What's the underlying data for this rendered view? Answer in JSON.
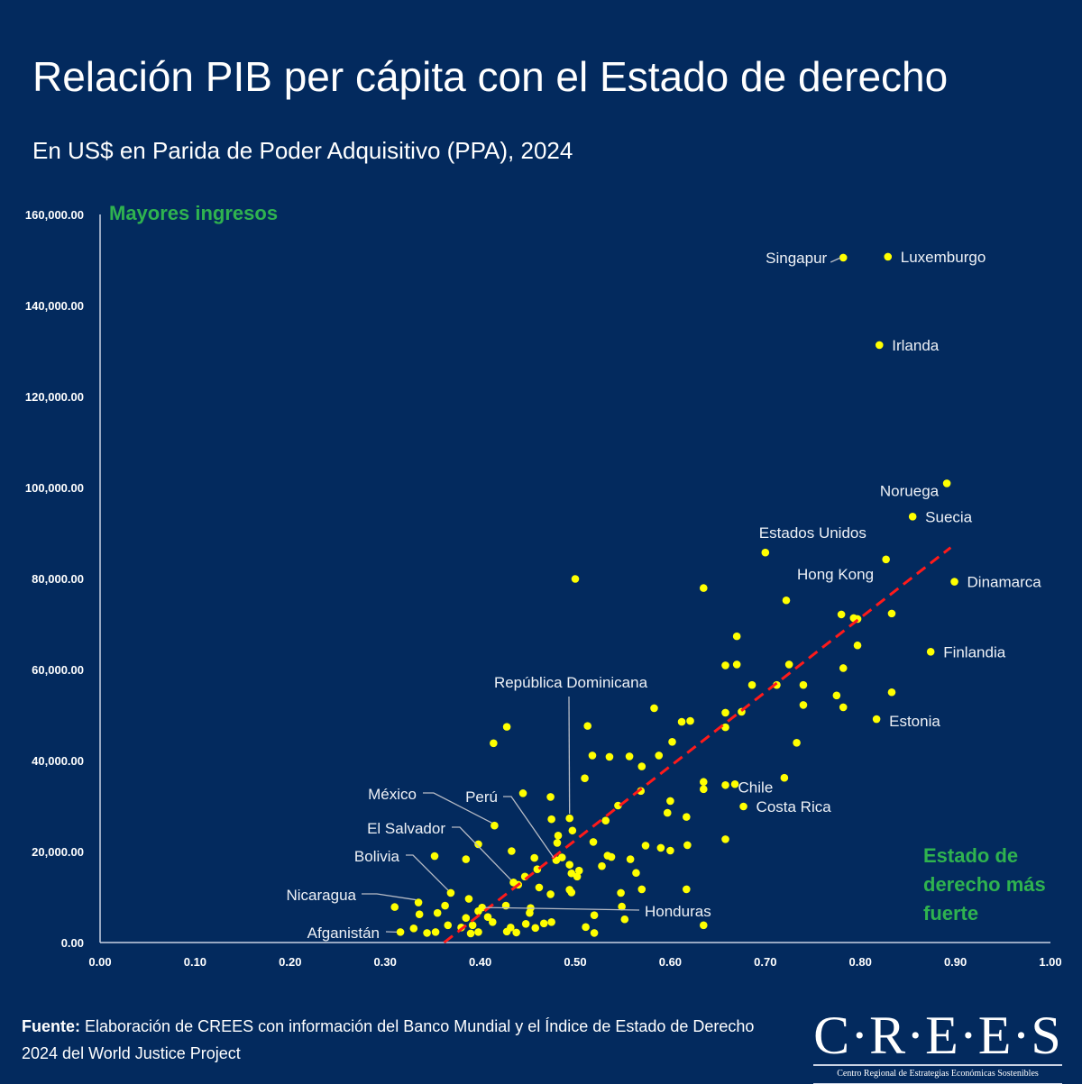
{
  "header": {
    "title": "Relación PIB per cápita con el Estado de derecho",
    "subtitle": "En US$ en Parida de Poder Adquisitivo (PPA), 2024"
  },
  "footer": {
    "source_label": "Fuente:",
    "source_text": " Elaboración de CREES con información del Banco Mundial y el Índice de Estado de Derecho 2024 del World Justice Project",
    "logo_text": "C·R·E·E·S",
    "logo_subtitle": "Centro Regional de Estrategias Económicas Sostenibles"
  },
  "colors": {
    "background": "#032a5e",
    "point": "#ffff00",
    "trendline": "#ff1a1a",
    "annotation_green": "#2fb34f",
    "axis": "#c9d2e3",
    "leader": "#b8bcc6"
  },
  "chart_data": {
    "type": "scatter",
    "title": "Relación PIB per cápita con el Estado de derecho",
    "subtitle": "En US$ en Parida de Poder Adquisitivo (PPA), 2024",
    "xlabel": "",
    "ylabel": "",
    "xlim": [
      0,
      1
    ],
    "ylim": [
      0,
      160000
    ],
    "xticks": [
      "0.00",
      "0.10",
      "0.20",
      "0.30",
      "0.40",
      "0.50",
      "0.60",
      "0.70",
      "0.80",
      "0.90",
      "1.00"
    ],
    "yticks": [
      "0.00",
      "20,000.00",
      "40,000.00",
      "60,000.00",
      "80,000.00",
      "100,000.00",
      "120,000.00",
      "140,000.00",
      "160,000.00"
    ],
    "grid": false,
    "annotations": {
      "top": "Mayores ingresos",
      "bottom_right": [
        "Estado de",
        "derecho más",
        "fuerte"
      ]
    },
    "trendline": {
      "x": [
        0.362,
        0.895
      ],
      "y": [
        0,
        86800
      ],
      "style": "dashed"
    },
    "labeled_points": [
      {
        "name": "Singapur",
        "x": 0.782,
        "y": 150500
      },
      {
        "name": "Luxemburgo",
        "x": 0.829,
        "y": 150700
      },
      {
        "name": "Irlanda",
        "x": 0.82,
        "y": 131300
      },
      {
        "name": "Noruega",
        "x": 0.891,
        "y": 100900
      },
      {
        "name": "Suecia",
        "x": 0.855,
        "y": 93600
      },
      {
        "name": "Estados Unidos",
        "x": 0.7,
        "y": 85700
      },
      {
        "name": "Hong Kong",
        "x": 0.722,
        "y": 75200
      },
      {
        "name": "Dinamarca",
        "x": 0.899,
        "y": 79300
      },
      {
        "name": "Finlandia",
        "x": 0.874,
        "y": 63900
      },
      {
        "name": "Estonia",
        "x": 0.817,
        "y": 49100
      },
      {
        "name": "Chile",
        "x": 0.658,
        "y": 34600
      },
      {
        "name": "Costa Rica",
        "x": 0.677,
        "y": 29900
      },
      {
        "name": "República Dominicana",
        "x": 0.494,
        "y": 27300
      },
      {
        "name": "México",
        "x": 0.415,
        "y": 25700
      },
      {
        "name": "Perú",
        "x": 0.48,
        "y": 18100
      },
      {
        "name": "El Salvador",
        "x": 0.435,
        "y": 13200
      },
      {
        "name": "Bolivia",
        "x": 0.369,
        "y": 10900
      },
      {
        "name": "Honduras",
        "x": 0.402,
        "y": 7700
      },
      {
        "name": "Nicaragua",
        "x": 0.335,
        "y": 8800
      },
      {
        "name": "Afganistán",
        "x": 0.316,
        "y": 2300
      }
    ],
    "points": [
      [
        0.5,
        79900
      ],
      [
        0.635,
        77900
      ],
      [
        0.827,
        84200
      ],
      [
        0.833,
        72300
      ],
      [
        0.78,
        72100
      ],
      [
        0.793,
        71300
      ],
      [
        0.797,
        71100
      ],
      [
        0.797,
        65300
      ],
      [
        0.782,
        60300
      ],
      [
        0.67,
        67300
      ],
      [
        0.67,
        61100
      ],
      [
        0.658,
        60900
      ],
      [
        0.725,
        61100
      ],
      [
        0.74,
        56600
      ],
      [
        0.712,
        56600
      ],
      [
        0.686,
        56600
      ],
      [
        0.833,
        55000
      ],
      [
        0.775,
        54300
      ],
      [
        0.74,
        52200
      ],
      [
        0.782,
        51700
      ],
      [
        0.675,
        50700
      ],
      [
        0.658,
        50500
      ],
      [
        0.658,
        47300
      ],
      [
        0.733,
        43900
      ],
      [
        0.72,
        36200
      ],
      [
        0.612,
        48500
      ],
      [
        0.621,
        48700
      ],
      [
        0.583,
        51500
      ],
      [
        0.428,
        47400
      ],
      [
        0.414,
        43800
      ],
      [
        0.513,
        47600
      ],
      [
        0.518,
        41100
      ],
      [
        0.536,
        40800
      ],
      [
        0.557,
        40900
      ],
      [
        0.588,
        41100
      ],
      [
        0.602,
        44100
      ],
      [
        0.57,
        38700
      ],
      [
        0.51,
        36100
      ],
      [
        0.635,
        35300
      ],
      [
        0.635,
        33700
      ],
      [
        0.6,
        31100
      ],
      [
        0.597,
        28500
      ],
      [
        0.617,
        27600
      ],
      [
        0.658,
        22700
      ],
      [
        0.635,
        3800
      ],
      [
        0.668,
        34800
      ],
      [
        0.569,
        33300
      ],
      [
        0.545,
        30100
      ],
      [
        0.532,
        26800
      ],
      [
        0.445,
        32800
      ],
      [
        0.474,
        32000
      ],
      [
        0.475,
        27100
      ],
      [
        0.497,
        24600
      ],
      [
        0.482,
        23500
      ],
      [
        0.481,
        21900
      ],
      [
        0.519,
        22100
      ],
      [
        0.574,
        21300
      ],
      [
        0.59,
        20800
      ],
      [
        0.6,
        20200
      ],
      [
        0.618,
        21400
      ],
      [
        0.534,
        19100
      ],
      [
        0.538,
        18800
      ],
      [
        0.558,
        18300
      ],
      [
        0.486,
        18700
      ],
      [
        0.457,
        18600
      ],
      [
        0.494,
        17100
      ],
      [
        0.504,
        15800
      ],
      [
        0.496,
        15200
      ],
      [
        0.502,
        14500
      ],
      [
        0.528,
        16800
      ],
      [
        0.564,
        15300
      ],
      [
        0.46,
        16100
      ],
      [
        0.447,
        14500
      ],
      [
        0.44,
        12700
      ],
      [
        0.462,
        12100
      ],
      [
        0.474,
        10600
      ],
      [
        0.494,
        11600
      ],
      [
        0.496,
        11000
      ],
      [
        0.57,
        11700
      ],
      [
        0.617,
        11700
      ],
      [
        0.548,
        10900
      ],
      [
        0.549,
        7900
      ],
      [
        0.552,
        5100
      ],
      [
        0.52,
        6000
      ],
      [
        0.52,
        2100
      ],
      [
        0.511,
        3400
      ],
      [
        0.475,
        4500
      ],
      [
        0.467,
        4200
      ],
      [
        0.458,
        3200
      ],
      [
        0.432,
        3300
      ],
      [
        0.438,
        2200
      ],
      [
        0.448,
        4100
      ],
      [
        0.428,
        2400
      ],
      [
        0.453,
        7600
      ],
      [
        0.452,
        6500
      ],
      [
        0.427,
        8100
      ],
      [
        0.413,
        4500
      ],
      [
        0.398,
        6900
      ],
      [
        0.392,
        3800
      ],
      [
        0.39,
        2000
      ],
      [
        0.398,
        2300
      ],
      [
        0.38,
        3300
      ],
      [
        0.385,
        5400
      ],
      [
        0.366,
        3800
      ],
      [
        0.355,
        6500
      ],
      [
        0.336,
        6200
      ],
      [
        0.344,
        2100
      ],
      [
        0.353,
        2300
      ],
      [
        0.33,
        3100
      ],
      [
        0.31,
        7800
      ],
      [
        0.388,
        9600
      ],
      [
        0.363,
        8100
      ],
      [
        0.385,
        18300
      ],
      [
        0.352,
        19000
      ],
      [
        0.398,
        21600
      ],
      [
        0.433,
        20100
      ],
      [
        0.408,
        5600
      ]
    ]
  }
}
